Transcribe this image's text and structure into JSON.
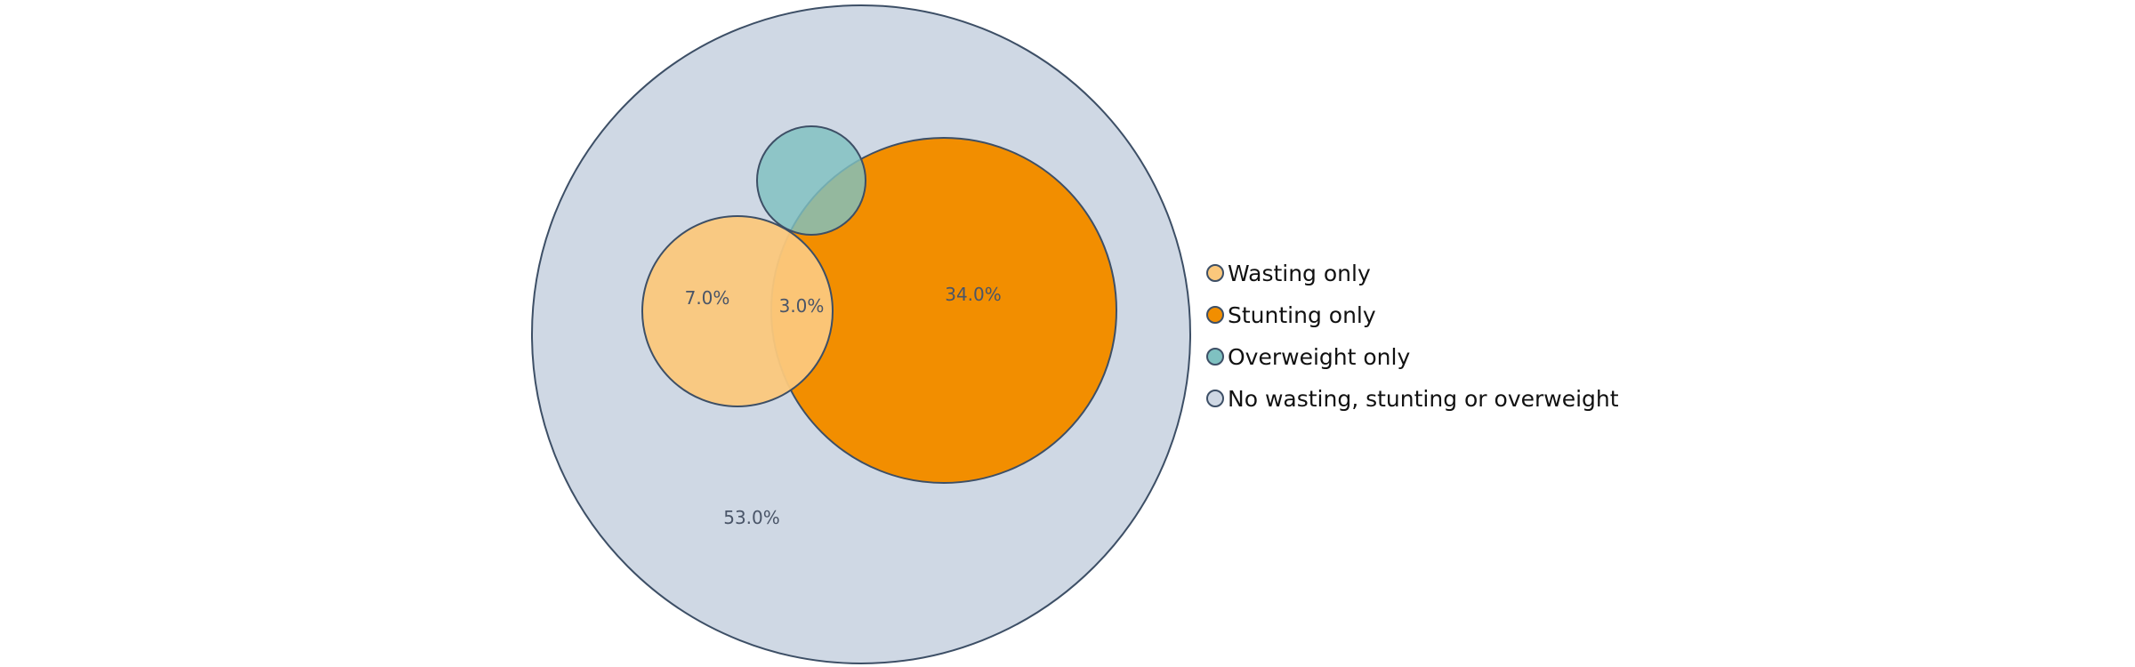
{
  "chart_data": {
    "type": "venn",
    "title": "",
    "sets": [
      {
        "key": "none",
        "name": "No wasting, stunting or overweight",
        "color": "#cfd8e4"
      },
      {
        "key": "stunting",
        "name": "Stunting only",
        "color": "#f28e00"
      },
      {
        "key": "wasting",
        "name": "Wasting only",
        "color": "#fbc87c",
        "opacity": 0.95
      },
      {
        "key": "overweight",
        "name": "Overweight only",
        "color": "#7fc1c1",
        "opacity": 0.82
      }
    ],
    "regions": [
      {
        "sets": [
          "wasting"
        ],
        "value": 7.0,
        "label": "7.0%"
      },
      {
        "sets": [
          "wasting",
          "stunting"
        ],
        "value": 3.0,
        "label": "3.0%"
      },
      {
        "sets": [
          "stunting"
        ],
        "value": 34.0,
        "label": "34.0%"
      },
      {
        "sets": [
          "none"
        ],
        "value": 53.0,
        "label": "53.0%"
      }
    ],
    "legend": {
      "placement": "right",
      "items": [
        {
          "label": "Wasting only",
          "color": "#fbc87c"
        },
        {
          "label": "Stunting only",
          "color": "#f28e00"
        },
        {
          "label": "Overweight only",
          "color": "#7fc1c1"
        },
        {
          "label": "No wasting, stunting or overweight",
          "color": "#cfd8e4"
        }
      ]
    },
    "outline_color": "#3d4f66"
  }
}
